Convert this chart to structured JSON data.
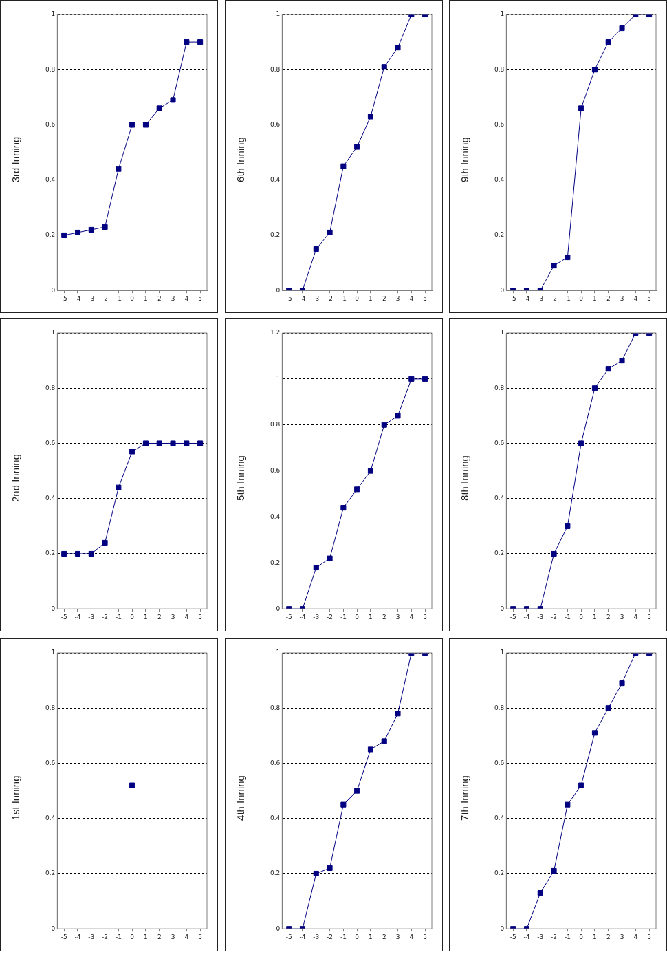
{
  "chart_data": [
    {
      "type": "line",
      "title": "1st Inning",
      "x": [
        0
      ],
      "color": "#000080",
      "marker": "square",
      "grid": "y",
      "legend": false,
      "xlim": [
        -5.5,
        5.5
      ],
      "xticks": [
        -5,
        -4,
        -3,
        -2,
        -1,
        0,
        1,
        2,
        3,
        4,
        5
      ],
      "ylim": [
        0,
        1
      ],
      "yticks": [
        0,
        0.2,
        0.4,
        0.6,
        0.8,
        1
      ],
      "values": [
        0.52
      ]
    },
    {
      "type": "line",
      "title": "2nd Inning",
      "x": [
        -5,
        -4,
        -3,
        -2,
        -1,
        0,
        1,
        2,
        3,
        4,
        5
      ],
      "color": "#000080",
      "marker": "square",
      "grid": "y",
      "legend": false,
      "xlim": [
        -5.5,
        5.5
      ],
      "xticks": [
        -5,
        -4,
        -3,
        -2,
        -1,
        0,
        1,
        2,
        3,
        4,
        5
      ],
      "ylim": [
        0,
        1
      ],
      "yticks": [
        0,
        0.2,
        0.4,
        0.6,
        0.8,
        1
      ],
      "values": [
        0.2,
        0.2,
        0.2,
        0.24,
        0.44,
        0.57,
        0.6,
        0.6,
        0.6,
        0.6,
        0.6
      ]
    },
    {
      "type": "line",
      "title": "3rd Inning",
      "x": [
        -5,
        -4,
        -3,
        -2,
        -1,
        0,
        1,
        2,
        3,
        4,
        5
      ],
      "color": "#000080",
      "marker": "square",
      "grid": "y",
      "legend": false,
      "xlim": [
        -5.5,
        5.5
      ],
      "xticks": [
        -5,
        -4,
        -3,
        -2,
        -1,
        0,
        1,
        2,
        3,
        4,
        5
      ],
      "ylim": [
        0,
        1
      ],
      "yticks": [
        0,
        0.2,
        0.4,
        0.6,
        0.8,
        1
      ],
      "values": [
        0.2,
        0.21,
        0.22,
        0.23,
        0.44,
        0.6,
        0.6,
        0.66,
        0.69,
        0.9,
        0.9
      ]
    },
    {
      "type": "line",
      "title": "4th Inning",
      "x": [
        -5,
        -4,
        -3,
        -2,
        -1,
        0,
        1,
        2,
        3,
        4,
        5
      ],
      "color": "#000080",
      "marker": "square",
      "grid": "y",
      "legend": false,
      "xlim": [
        -5.5,
        5.5
      ],
      "xticks": [
        -5,
        -4,
        -3,
        -2,
        -1,
        0,
        1,
        2,
        3,
        4,
        5
      ],
      "ylim": [
        0,
        1
      ],
      "yticks": [
        0,
        0.2,
        0.4,
        0.6,
        0.8,
        1
      ],
      "values": [
        0,
        0,
        0.2,
        0.22,
        0.45,
        0.5,
        0.65,
        0.68,
        0.78,
        1,
        1
      ]
    },
    {
      "type": "line",
      "title": "5th Inning",
      "x": [
        -5,
        -4,
        -3,
        -2,
        -1,
        0,
        1,
        2,
        3,
        4,
        5
      ],
      "color": "#000080",
      "marker": "square",
      "grid": "y",
      "legend": false,
      "xlim": [
        -5.5,
        5.5
      ],
      "xticks": [
        -5,
        -4,
        -3,
        -2,
        -1,
        0,
        1,
        2,
        3,
        4,
        5
      ],
      "ylim": [
        0,
        1.2
      ],
      "yticks": [
        0,
        0.2,
        0.4,
        0.6,
        0.8,
        1,
        1.2
      ],
      "values": [
        0,
        0,
        0.18,
        0.22,
        0.44,
        0.52,
        0.6,
        0.8,
        0.84,
        1,
        1
      ]
    },
    {
      "type": "line",
      "title": "6th Inning",
      "x": [
        -5,
        -4,
        -3,
        -2,
        -1,
        0,
        1,
        2,
        3,
        4,
        5
      ],
      "color": "#000080",
      "marker": "square",
      "grid": "y",
      "legend": false,
      "xlim": [
        -5.5,
        5.5
      ],
      "xticks": [
        -5,
        -4,
        -3,
        -2,
        -1,
        0,
        1,
        2,
        3,
        4,
        5
      ],
      "ylim": [
        0,
        1
      ],
      "yticks": [
        0,
        0.2,
        0.4,
        0.6,
        0.8,
        1
      ],
      "values": [
        0,
        0,
        0.15,
        0.21,
        0.45,
        0.52,
        0.63,
        0.81,
        0.88,
        1,
        1
      ]
    },
    {
      "type": "line",
      "title": "7th Inning",
      "x": [
        -5,
        -4,
        -3,
        -2,
        -1,
        0,
        1,
        2,
        3,
        4,
        5
      ],
      "color": "#000080",
      "marker": "square",
      "grid": "y",
      "legend": false,
      "xlim": [
        -5.5,
        5.5
      ],
      "xticks": [
        -5,
        -4,
        -3,
        -2,
        -1,
        0,
        1,
        2,
        3,
        4,
        5
      ],
      "ylim": [
        0,
        1
      ],
      "yticks": [
        0,
        0.2,
        0.4,
        0.6,
        0.8,
        1
      ],
      "values": [
        0,
        0,
        0.13,
        0.21,
        0.45,
        0.52,
        0.71,
        0.8,
        0.89,
        1,
        1
      ]
    },
    {
      "type": "line",
      "title": "8th Inning",
      "x": [
        -5,
        -4,
        -3,
        -2,
        -1,
        0,
        1,
        2,
        3,
        4,
        5
      ],
      "color": "#000080",
      "marker": "square",
      "grid": "y",
      "legend": false,
      "xlim": [
        -5.5,
        5.5
      ],
      "xticks": [
        -5,
        -4,
        -3,
        -2,
        -1,
        0,
        1,
        2,
        3,
        4,
        5
      ],
      "ylim": [
        0,
        1
      ],
      "yticks": [
        0,
        0.2,
        0.4,
        0.6,
        0.8,
        1
      ],
      "values": [
        0,
        0,
        0,
        0.2,
        0.3,
        0.6,
        0.8,
        0.87,
        0.9,
        1,
        1
      ]
    },
    {
      "type": "line",
      "title": "9th Inning",
      "x": [
        -5,
        -4,
        -3,
        -2,
        -1,
        0,
        1,
        2,
        3,
        4,
        5
      ],
      "color": "#000080",
      "marker": "square",
      "grid": "y",
      "legend": false,
      "xlim": [
        -5.5,
        5.5
      ],
      "xticks": [
        -5,
        -4,
        -3,
        -2,
        -1,
        0,
        1,
        2,
        3,
        4,
        5
      ],
      "ylim": [
        0,
        1
      ],
      "yticks": [
        0,
        0.2,
        0.4,
        0.6,
        0.8,
        1
      ],
      "values": [
        0,
        0,
        0,
        0.09,
        0.12,
        0.66,
        0.8,
        0.9,
        0.95,
        1,
        1
      ]
    }
  ]
}
